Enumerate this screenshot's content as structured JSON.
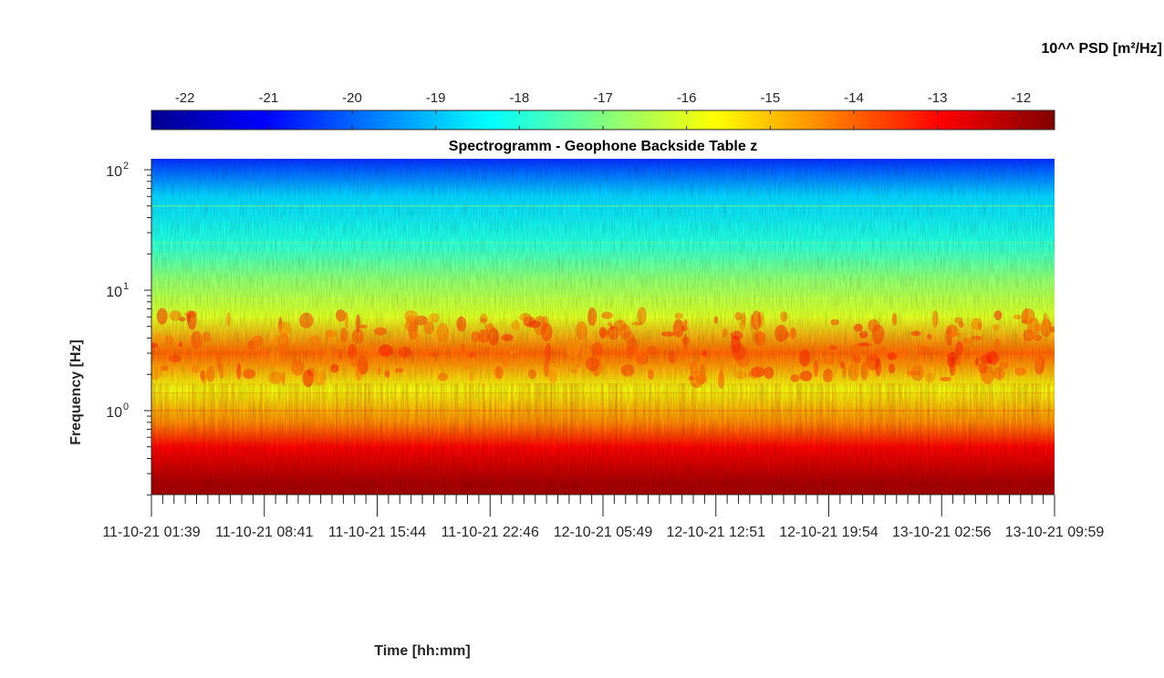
{
  "chart_data": {
    "type": "heatmap",
    "title": "Spectrogramm - Geophone Backside Table z",
    "xlabel": "Time [hh:mm]",
    "ylabel": "Frequency [Hz]",
    "colorbar_label": "10^^ PSD [m²/Hz]",
    "colormap": "jet",
    "y_scale": "log",
    "ylim": [
      0.2,
      125
    ],
    "clim": [
      -22.4,
      -11.6
    ],
    "colorbar_ticks": [
      "-22",
      "-21",
      "-20",
      "-19",
      "-18",
      "-17",
      "-16",
      "-15",
      "-14",
      "-13",
      "-12"
    ],
    "x_ticks": [
      "11-10-21 01:39",
      "11-10-21 08:41",
      "11-10-21 15:44",
      "11-10-21 22:46",
      "12-10-21 05:49",
      "12-10-21 12:51",
      "12-10-21 19:54",
      "13-10-21 02:56",
      "13-10-21 09:59"
    ],
    "y_ticks": [
      {
        "base": "10",
        "exp": "0",
        "value": 1
      },
      {
        "base": "10",
        "exp": "1",
        "value": 10
      },
      {
        "base": "10",
        "exp": "2",
        "value": 100
      }
    ],
    "approx_log10_psd_by_frequency": [
      {
        "freq_hz": 0.25,
        "value": -12.0
      },
      {
        "freq_hz": 0.5,
        "value": -13.0
      },
      {
        "freq_hz": 0.8,
        "value": -14.5
      },
      {
        "freq_hz": 1.5,
        "value": -15.8
      },
      {
        "freq_hz": 3.0,
        "value": -14.0
      },
      {
        "freq_hz": 6.0,
        "value": -16.0
      },
      {
        "freq_hz": 12.0,
        "value": -16.8
      },
      {
        "freq_hz": 25.0,
        "value": -18.0
      },
      {
        "freq_hz": 60.0,
        "value": -18.8
      },
      {
        "freq_hz": 120.0,
        "value": -20.5
      }
    ]
  },
  "colors": {
    "axis": "#262626",
    "jet": [
      "#00008f",
      "#0000ff",
      "#0080ff",
      "#00ffff",
      "#80ff80",
      "#ffff00",
      "#ff8000",
      "#ff0000",
      "#800000"
    ]
  }
}
